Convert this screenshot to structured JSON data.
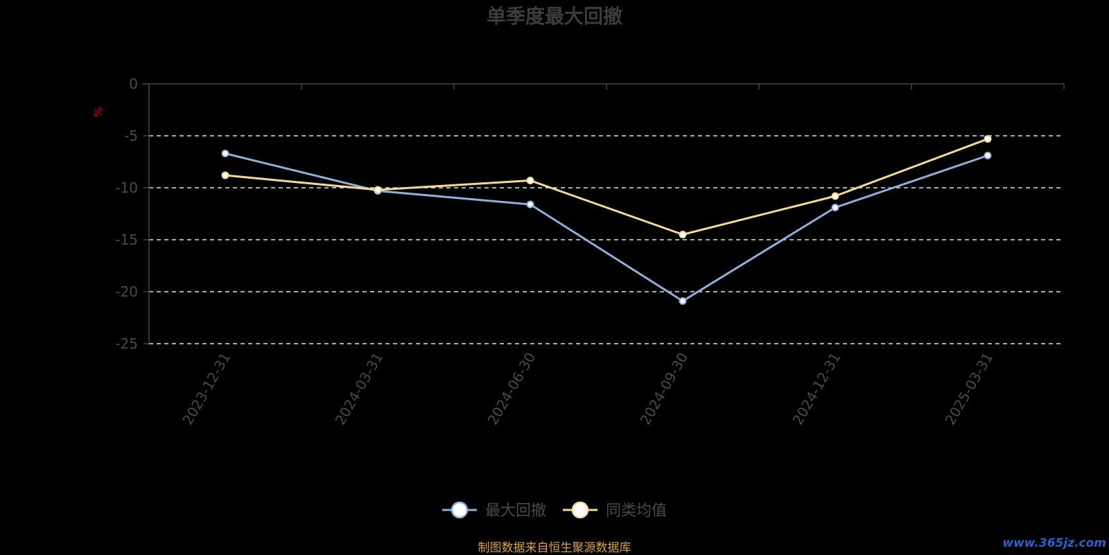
{
  "chart_data": {
    "type": "line",
    "title": "单季度最大回撤",
    "ylabel": "%",
    "xlabel": "",
    "categories": [
      "2023-12-31",
      "2024-03-31",
      "2024-06-30",
      "2024-09-30",
      "2024-12-31",
      "2025-03-31"
    ],
    "ylim": [
      -25,
      0
    ],
    "yticks": [
      0,
      -5,
      -10,
      -15,
      -20,
      -25
    ],
    "grid": true,
    "legend_position": "bottom-center",
    "series": [
      {
        "name": "最大回撤",
        "color": "#8fb0d9",
        "values": [
          -6.7,
          -10.3,
          -11.6,
          -20.9,
          -11.9,
          -6.9
        ]
      },
      {
        "name": "同类均值",
        "color": "#f7d896",
        "values": [
          -8.8,
          -10.2,
          -9.3,
          -14.5,
          -10.8,
          -5.3
        ]
      }
    ]
  },
  "footer": {
    "source": "制图数据来自恒生聚源数据库",
    "watermark": "www.365jz.com"
  }
}
